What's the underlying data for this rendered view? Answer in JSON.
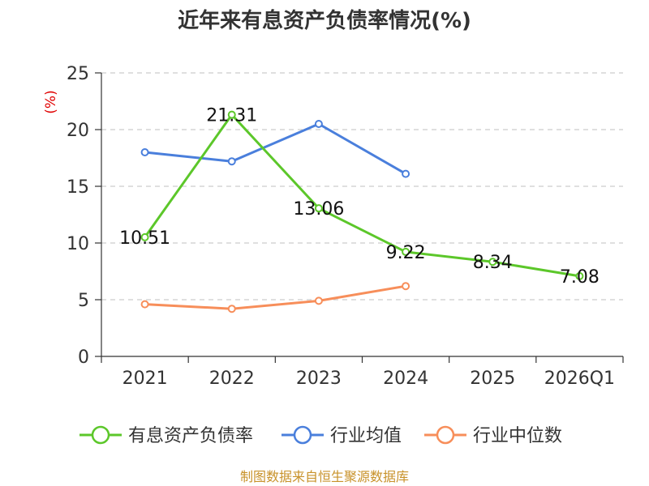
{
  "chart_data": {
    "type": "line",
    "title": "近年来有息资产负债率情况(%)",
    "ylabel": "(%)",
    "xlabel": "",
    "categories": [
      "2021",
      "2022",
      "2023",
      "2024",
      "2025",
      "2026Q1"
    ],
    "ylim": [
      0,
      25
    ],
    "yticks": [
      0,
      5,
      10,
      15,
      20,
      25
    ],
    "grid": true,
    "legend_position": "bottom",
    "series": [
      {
        "name": "有息资产负债率",
        "color": "#5cc72a",
        "values": [
          10.51,
          21.31,
          13.06,
          9.22,
          8.34,
          7.08
        ],
        "data_labels": [
          "10.51",
          "21.31",
          "13.06",
          "9.22",
          "8.34",
          "7.08"
        ]
      },
      {
        "name": "行业均值",
        "color": "#4a7fdc",
        "values": [
          18.0,
          17.2,
          20.5,
          16.1,
          null,
          null
        ]
      },
      {
        "name": "行业中位数",
        "color": "#f78e5a",
        "values": [
          4.6,
          4.2,
          4.9,
          6.2,
          null,
          null
        ]
      }
    ],
    "source": "制图数据来自恒生聚源数据库"
  }
}
